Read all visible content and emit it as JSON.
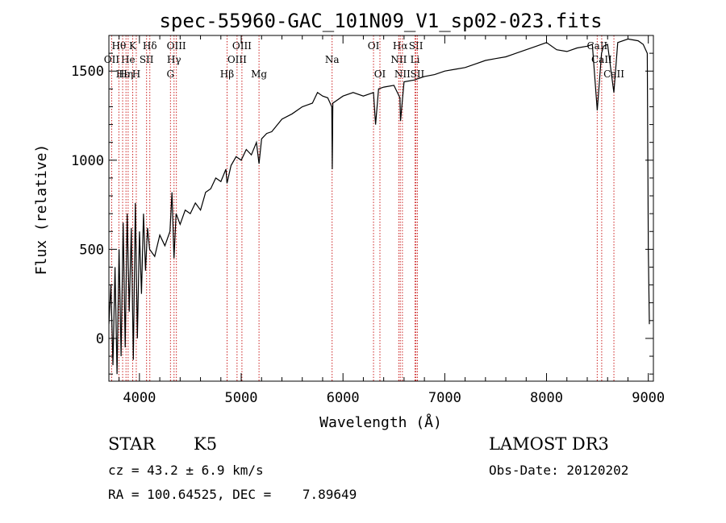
{
  "chart_data": {
    "type": "line",
    "title": "spec-55960-GAC_101N09_V1_sp02-023.fits",
    "xlabel": "Wavelength (Å)",
    "ylabel": "Flux (relative)",
    "xlim": [
      3700,
      9050
    ],
    "ylim": [
      -240,
      1700
    ],
    "x_ticks": [
      4000,
      5000,
      6000,
      7000,
      8000,
      9000
    ],
    "y_ticks": [
      0,
      500,
      1000,
      1500
    ],
    "series": [
      {
        "name": "flux",
        "x": [
          3700,
          3720,
          3740,
          3760,
          3780,
          3800,
          3820,
          3840,
          3860,
          3880,
          3900,
          3920,
          3940,
          3960,
          3980,
          4000,
          4020,
          4040,
          4060,
          4080,
          4100,
          4150,
          4200,
          4250,
          4300,
          4320,
          4340,
          4360,
          4400,
          4450,
          4500,
          4550,
          4600,
          4650,
          4700,
          4750,
          4800,
          4850,
          4860,
          4900,
          4950,
          5000,
          5050,
          5100,
          5150,
          5175,
          5200,
          5250,
          5300,
          5400,
          5500,
          5600,
          5700,
          5750,
          5800,
          5850,
          5890,
          5895,
          5900,
          5950,
          6000,
          6100,
          6200,
          6300,
          6320,
          6350,
          6400,
          6500,
          6560,
          6565,
          6600,
          6700,
          6800,
          6900,
          7000,
          7100,
          7200,
          7300,
          7400,
          7500,
          7600,
          7700,
          7800,
          7900,
          8000,
          8100,
          8200,
          8300,
          8400,
          8450,
          8498,
          8540,
          8560,
          8600,
          8662,
          8700,
          8800,
          8900,
          8950,
          8990,
          9000,
          9010
        ],
        "values": [
          80,
          300,
          -150,
          400,
          -200,
          500,
          -100,
          650,
          -50,
          700,
          150,
          620,
          -120,
          760,
          0,
          600,
          250,
          700,
          380,
          620,
          500,
          460,
          580,
          520,
          600,
          820,
          450,
          700,
          640,
          720,
          700,
          760,
          720,
          820,
          840,
          900,
          880,
          950,
          870,
          970,
          1020,
          1000,
          1060,
          1030,
          1100,
          980,
          1120,
          1150,
          1160,
          1230,
          1260,
          1300,
          1320,
          1380,
          1360,
          1350,
          1300,
          950,
          1320,
          1340,
          1360,
          1380,
          1360,
          1380,
          1200,
          1400,
          1410,
          1420,
          1350,
          1220,
          1440,
          1450,
          1470,
          1480,
          1500,
          1510,
          1520,
          1540,
          1560,
          1570,
          1580,
          1600,
          1620,
          1640,
          1660,
          1620,
          1610,
          1630,
          1640,
          1650,
          1280,
          1600,
          1640,
          1650,
          1380,
          1660,
          1680,
          1670,
          1650,
          1600,
          500,
          80
        ]
      }
    ],
    "spectral_lines": [
      {
        "label": "Hθ",
        "wavelength": 3798,
        "row": 1
      },
      {
        "label": "K",
        "wavelength": 3934,
        "row": 1
      },
      {
        "label": "Hδ",
        "wavelength": 4102,
        "row": 1
      },
      {
        "label": "OIII",
        "wavelength": 4363,
        "row": 1
      },
      {
        "label": "OIII",
        "wavelength": 5007,
        "row": 1
      },
      {
        "label": "OI",
        "wavelength": 6300,
        "row": 1
      },
      {
        "label": "Hα",
        "wavelength": 6563,
        "row": 1
      },
      {
        "label": "SII",
        "wavelength": 6717,
        "row": 1
      },
      {
        "label": "CaII",
        "wavelength": 8498,
        "row": 1
      },
      {
        "label": "OII",
        "wavelength": 3727,
        "row": 2
      },
      {
        "label": "He",
        "wavelength": 3889,
        "row": 2
      },
      {
        "label": "SII",
        "wavelength": 4070,
        "row": 2
      },
      {
        "label": "Hγ",
        "wavelength": 4340,
        "row": 2
      },
      {
        "label": "OIII",
        "wavelength": 4959,
        "row": 2
      },
      {
        "label": "Na",
        "wavelength": 5893,
        "row": 2
      },
      {
        "label": "NII",
        "wavelength": 6548,
        "row": 2
      },
      {
        "label": "Li",
        "wavelength": 6708,
        "row": 2
      },
      {
        "label": "CaII",
        "wavelength": 8542,
        "row": 2
      },
      {
        "label": "Hε",
        "wavelength": 3835,
        "row": 3
      },
      {
        "label": "Hη",
        "wavelength": 3868,
        "row": 3
      },
      {
        "label": "H",
        "wavelength": 3969,
        "row": 3
      },
      {
        "label": "G",
        "wavelength": 4305,
        "row": 3
      },
      {
        "label": "Hβ",
        "wavelength": 4861,
        "row": 3
      },
      {
        "label": "Mg",
        "wavelength": 5175,
        "row": 3
      },
      {
        "label": "OI",
        "wavelength": 6363,
        "row": 3
      },
      {
        "label": "NII",
        "wavelength": 6584,
        "row": 3
      },
      {
        "label": "SII",
        "wavelength": 6731,
        "row": 3
      },
      {
        "label": "CaII",
        "wavelength": 8662,
        "row": 3
      }
    ]
  },
  "info": {
    "object_class": "STAR",
    "subclass": "K5",
    "survey": "LAMOST DR3",
    "redshift": "cz = 43.2 ± 6.9 km/s",
    "obs_date": "Obs-Date: 20120202",
    "coords": "RA = 100.64525, DEC =    7.89649"
  }
}
